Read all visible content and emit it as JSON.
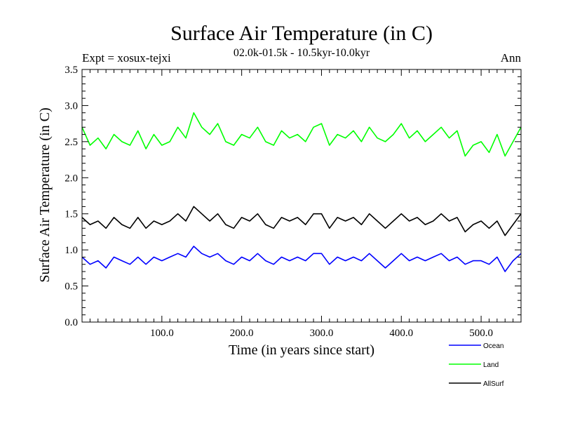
{
  "chart_data": {
    "type": "line",
    "title": "Surface Air Temperature (in C)",
    "subtitle": "02.0k-01.5k - 10.5kyr-10.0kyr",
    "expt_label": "Expt = xosux-tejxi",
    "season_label": "Ann",
    "xlabel": "Time (in years since start)",
    "ylabel": "Surface Air Temperature (in C)",
    "xlim": [
      0,
      550
    ],
    "ylim": [
      0.0,
      3.5
    ],
    "x_ticks": [
      100,
      200,
      300,
      400,
      500
    ],
    "x_tick_labels": [
      "100.0",
      "200.0",
      "300.0",
      "400.0",
      "500.0"
    ],
    "y_ticks": [
      0.0,
      0.5,
      1.0,
      1.5,
      2.0,
      2.5,
      3.0,
      3.5
    ],
    "y_tick_labels": [
      "0.0",
      "0.5",
      "1.0",
      "1.5",
      "2.0",
      "2.5",
      "3.0",
      "3.5"
    ],
    "legend_position": "bottom-right, below plot",
    "series": [
      {
        "name": "Land",
        "color": "#00ff00",
        "x": [
          0,
          10,
          20,
          30,
          40,
          50,
          60,
          70,
          80,
          90,
          100,
          110,
          120,
          130,
          140,
          150,
          160,
          170,
          180,
          190,
          200,
          210,
          220,
          230,
          240,
          250,
          260,
          270,
          280,
          290,
          300,
          310,
          320,
          330,
          340,
          350,
          360,
          370,
          380,
          390,
          400,
          410,
          420,
          430,
          440,
          450,
          460,
          470,
          480,
          490,
          500,
          510,
          520,
          530,
          540,
          550
        ],
        "values": [
          2.7,
          2.45,
          2.55,
          2.4,
          2.6,
          2.5,
          2.45,
          2.65,
          2.4,
          2.6,
          2.45,
          2.5,
          2.7,
          2.55,
          2.9,
          2.7,
          2.6,
          2.75,
          2.5,
          2.45,
          2.6,
          2.55,
          2.7,
          2.5,
          2.45,
          2.65,
          2.55,
          2.6,
          2.5,
          2.7,
          2.75,
          2.45,
          2.6,
          2.55,
          2.65,
          2.5,
          2.7,
          2.55,
          2.5,
          2.6,
          2.75,
          2.55,
          2.65,
          2.5,
          2.6,
          2.7,
          2.55,
          2.65,
          2.3,
          2.45,
          2.5,
          2.35,
          2.6,
          2.3,
          2.5,
          2.7
        ]
      },
      {
        "name": "AllSurf",
        "color": "#000000",
        "x": [
          0,
          10,
          20,
          30,
          40,
          50,
          60,
          70,
          80,
          90,
          100,
          110,
          120,
          130,
          140,
          150,
          160,
          170,
          180,
          190,
          200,
          210,
          220,
          230,
          240,
          250,
          260,
          270,
          280,
          290,
          300,
          310,
          320,
          330,
          340,
          350,
          360,
          370,
          380,
          390,
          400,
          410,
          420,
          430,
          440,
          450,
          460,
          470,
          480,
          490,
          500,
          510,
          520,
          530,
          540,
          550
        ],
        "values": [
          1.45,
          1.35,
          1.4,
          1.3,
          1.45,
          1.35,
          1.3,
          1.45,
          1.3,
          1.4,
          1.35,
          1.4,
          1.5,
          1.4,
          1.6,
          1.5,
          1.4,
          1.5,
          1.35,
          1.3,
          1.45,
          1.4,
          1.5,
          1.35,
          1.3,
          1.45,
          1.4,
          1.45,
          1.35,
          1.5,
          1.5,
          1.3,
          1.45,
          1.4,
          1.45,
          1.35,
          1.5,
          1.4,
          1.3,
          1.4,
          1.5,
          1.4,
          1.45,
          1.35,
          1.4,
          1.5,
          1.4,
          1.45,
          1.25,
          1.35,
          1.4,
          1.3,
          1.4,
          1.2,
          1.35,
          1.5
        ]
      },
      {
        "name": "Ocean",
        "color": "#0000ff",
        "x": [
          0,
          10,
          20,
          30,
          40,
          50,
          60,
          70,
          80,
          90,
          100,
          110,
          120,
          130,
          140,
          150,
          160,
          170,
          180,
          190,
          200,
          210,
          220,
          230,
          240,
          250,
          260,
          270,
          280,
          290,
          300,
          310,
          320,
          330,
          340,
          350,
          360,
          370,
          380,
          390,
          400,
          410,
          420,
          430,
          440,
          450,
          460,
          470,
          480,
          490,
          500,
          510,
          520,
          530,
          540,
          550
        ],
        "values": [
          0.9,
          0.8,
          0.85,
          0.75,
          0.9,
          0.85,
          0.8,
          0.9,
          0.8,
          0.9,
          0.85,
          0.9,
          0.95,
          0.9,
          1.05,
          0.95,
          0.9,
          0.95,
          0.85,
          0.8,
          0.9,
          0.85,
          0.95,
          0.85,
          0.8,
          0.9,
          0.85,
          0.9,
          0.85,
          0.95,
          0.95,
          0.8,
          0.9,
          0.85,
          0.9,
          0.85,
          0.95,
          0.85,
          0.75,
          0.85,
          0.95,
          0.85,
          0.9,
          0.85,
          0.9,
          0.95,
          0.85,
          0.9,
          0.8,
          0.85,
          0.85,
          0.8,
          0.9,
          0.7,
          0.85,
          0.95
        ]
      }
    ],
    "legend_order": [
      "Ocean",
      "Land",
      "AllSurf"
    ]
  }
}
